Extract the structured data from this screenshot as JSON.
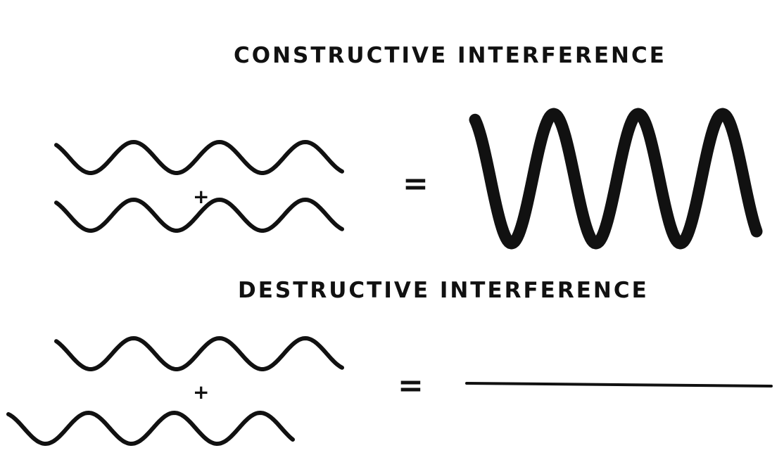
{
  "constructive": {
    "title": "CONSTRUCTIVE INTERFERENCE",
    "plus": "+",
    "equals": "="
  },
  "destructive": {
    "title": "DESTRUCTIVE INTERFERENCE",
    "plus": "+",
    "equals": "="
  },
  "colors": {
    "ink": "#111111",
    "background": "#ffffff"
  }
}
